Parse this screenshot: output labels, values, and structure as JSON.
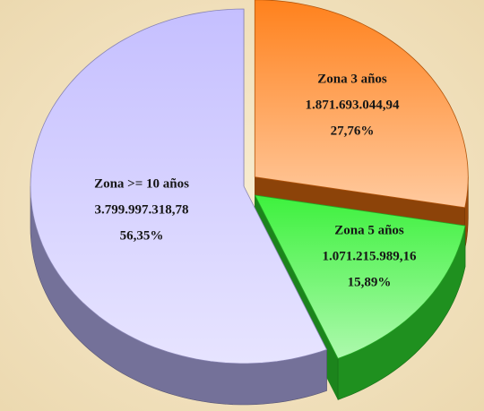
{
  "chart_data": {
    "type": "pie",
    "categories": [
      "Zona 3 años",
      "Zona 5 años",
      "Zona >= 10 años"
    ],
    "values": [
      1871693044.94,
      1071215989.16,
      3799997318.78
    ],
    "value_labels": [
      "1.871.693.044,94",
      "1.071.215.989,16",
      "3.799.997.318,78"
    ],
    "percentages": [
      27.76,
      15.89,
      56.35
    ],
    "percentage_labels": [
      "27,76%",
      "15,89%",
      "56,35%"
    ],
    "colors": [
      "#ff7a10",
      "#33f033",
      "#c2bcff"
    ]
  }
}
